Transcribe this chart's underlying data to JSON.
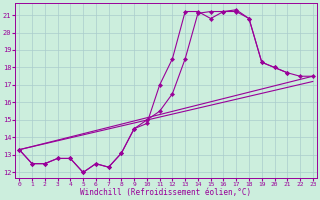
{
  "xlabel": "Windchill (Refroidissement éolien,°C)",
  "background_color": "#cceedd",
  "grid_color": "#aacccc",
  "line_color": "#990099",
  "xlim": [
    -0.3,
    23.3
  ],
  "ylim": [
    11.7,
    21.7
  ],
  "yticks": [
    12,
    13,
    14,
    15,
    16,
    17,
    18,
    19,
    20,
    21
  ],
  "xticks": [
    0,
    1,
    2,
    3,
    4,
    5,
    6,
    7,
    8,
    9,
    10,
    11,
    12,
    13,
    14,
    15,
    16,
    17,
    18,
    19,
    20,
    21,
    22,
    23
  ],
  "line1_x": [
    0,
    1,
    2,
    3,
    4,
    5,
    6,
    7,
    8,
    9,
    10,
    11,
    12,
    13,
    14,
    15,
    16,
    17,
    18,
    19,
    20,
    21
  ],
  "line1_y": [
    13.3,
    12.5,
    12.5,
    12.8,
    12.8,
    12.0,
    12.5,
    12.3,
    13.1,
    14.5,
    14.8,
    17.0,
    18.5,
    21.2,
    21.2,
    20.8,
    21.2,
    21.3,
    20.8,
    18.3,
    18.0,
    17.7
  ],
  "line2_x": [
    0,
    1,
    2,
    3,
    4,
    5,
    6,
    7,
    8,
    9,
    10,
    11,
    12,
    13,
    14,
    15,
    16,
    17,
    18,
    19,
    20,
    21,
    22,
    23
  ],
  "line2_y": [
    13.3,
    12.5,
    12.5,
    12.8,
    12.8,
    12.0,
    12.5,
    12.3,
    13.1,
    14.5,
    15.0,
    15.5,
    16.5,
    18.5,
    21.1,
    21.2,
    21.2,
    21.2,
    20.8,
    18.3,
    18.0,
    17.7,
    17.5,
    17.5
  ],
  "line3_x": [
    0,
    23
  ],
  "line3_y": [
    13.3,
    17.5
  ],
  "line4_x": [
    0,
    23
  ],
  "line4_y": [
    13.3,
    17.2
  ]
}
